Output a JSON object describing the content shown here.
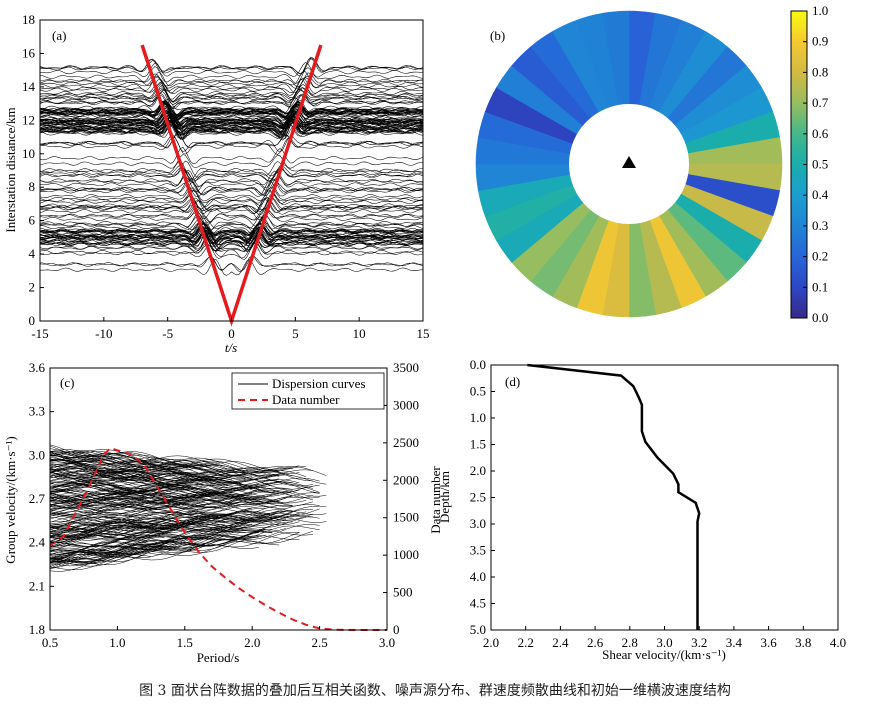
{
  "caption": "图 3   面状台阵数据的叠加后互相关函数、噪声源分布、群速度频散曲线和初始一维横波速度结构",
  "chart_data": [
    {
      "panel": "(a)",
      "type": "line",
      "xlabel": "t/s",
      "ylabel": "Interstation distance/km",
      "xlim": [
        -15,
        15
      ],
      "ylim": [
        0,
        18
      ],
      "xticks": [
        "-15",
        "-10",
        "-5",
        "0",
        "5",
        "10",
        "15"
      ],
      "yticks": [
        "0",
        "2",
        "4",
        "6",
        "8",
        "10",
        "12",
        "14",
        "16",
        "18"
      ],
      "traces": {
        "distance_min_km": 3.0,
        "distance_max_km": 15.2,
        "count": 150,
        "dense_bands_km": [
          5.0,
          12.0
        ]
      },
      "v_lines": {
        "color": "#e41a1c",
        "x": [
          -7,
          0,
          7
        ],
        "y": [
          16.5,
          0,
          16.5
        ]
      }
    },
    {
      "panel": "(b)",
      "type": "polar_sector",
      "sectors": 36,
      "values": [
        0.19,
        0.25,
        0.28,
        0.33,
        0.25,
        0.33,
        0.37,
        0.5,
        0.72,
        0.75,
        0.13,
        0.78,
        0.5,
        0.63,
        0.72,
        0.88,
        0.75,
        0.68,
        0.82,
        0.88,
        0.72,
        0.66,
        0.7,
        0.47,
        0.52,
        0.47,
        0.3,
        0.26,
        0.22,
        0.09,
        0.28,
        0.17,
        0.22,
        0.3,
        0.29,
        0.27
      ],
      "colorbar": {
        "min": 0.0,
        "max": 1.0,
        "ticks": [
          "0.0",
          "0.1",
          "0.2",
          "0.3",
          "0.4",
          "0.5",
          "0.6",
          "0.7",
          "0.8",
          "0.9",
          "1.0"
        ]
      },
      "center_marker": "triangle"
    },
    {
      "panel": "(c)",
      "type": "line",
      "xlabel": "Period/s",
      "ylabel": "Group velocity/(km·s⁻¹)",
      "y2label": "Data number",
      "xlim": [
        0.5,
        3.0
      ],
      "ylim": [
        1.8,
        3.6
      ],
      "y2lim": [
        0,
        3500
      ],
      "xticks": [
        "0.5",
        "1.0",
        "1.5",
        "2.0",
        "2.5",
        "3.0"
      ],
      "yticks": [
        "1.8",
        "2.1",
        "2.4",
        "2.7",
        "3.0",
        "3.3",
        "3.6"
      ],
      "y2ticks": [
        "0",
        "500",
        "1000",
        "1500",
        "2000",
        "2500",
        "3000",
        "3500"
      ],
      "legend": [
        "Dispersion curves",
        "Data number"
      ],
      "legend_position": "top-right",
      "dispersion_curves": {
        "count": 220,
        "color": "#000000"
      },
      "data_number": {
        "x": [
          0.5,
          0.6,
          0.7,
          0.8,
          0.9,
          0.95,
          1.0,
          1.1,
          1.2,
          1.3,
          1.4,
          1.5,
          1.6,
          1.7,
          1.8,
          1.9,
          2.0,
          2.1,
          2.2,
          2.3,
          2.4,
          2.5,
          2.6,
          2.7,
          3.0
        ],
        "y": [
          1130,
          1250,
          1600,
          1950,
          2350,
          2430,
          2400,
          2350,
          2200,
          1900,
          1600,
          1300,
          1050,
          850,
          700,
          560,
          440,
          330,
          230,
          140,
          70,
          20,
          5,
          0,
          0
        ],
        "color": "#e41a1c"
      }
    },
    {
      "panel": "(d)",
      "type": "line",
      "xlabel": "Shear velocity/(km·s⁻¹)",
      "ylabel": "Depth/km",
      "xlim": [
        2.0,
        4.0
      ],
      "ylim": [
        0.0,
        5.0
      ],
      "y_inverted": true,
      "xticks": [
        "2.0",
        "2.2",
        "2.4",
        "2.6",
        "2.8",
        "3.0",
        "3.2",
        "3.4",
        "3.6",
        "3.8",
        "4.0"
      ],
      "yticks": [
        "0.0",
        "0.5",
        "1.0",
        "1.5",
        "2.0",
        "2.5",
        "3.0",
        "3.5",
        "4.0",
        "4.5",
        "5.0"
      ],
      "profile": {
        "vs": [
          2.21,
          2.75,
          2.82,
          2.85,
          2.87,
          2.87,
          2.89,
          2.96,
          3.05,
          3.08,
          3.08,
          3.18,
          3.2,
          3.19,
          3.19,
          3.19
        ],
        "depth": [
          0.0,
          0.2,
          0.4,
          0.6,
          0.75,
          1.25,
          1.45,
          1.75,
          2.05,
          2.25,
          2.4,
          2.6,
          2.8,
          2.95,
          3.2,
          5.0
        ]
      }
    }
  ]
}
